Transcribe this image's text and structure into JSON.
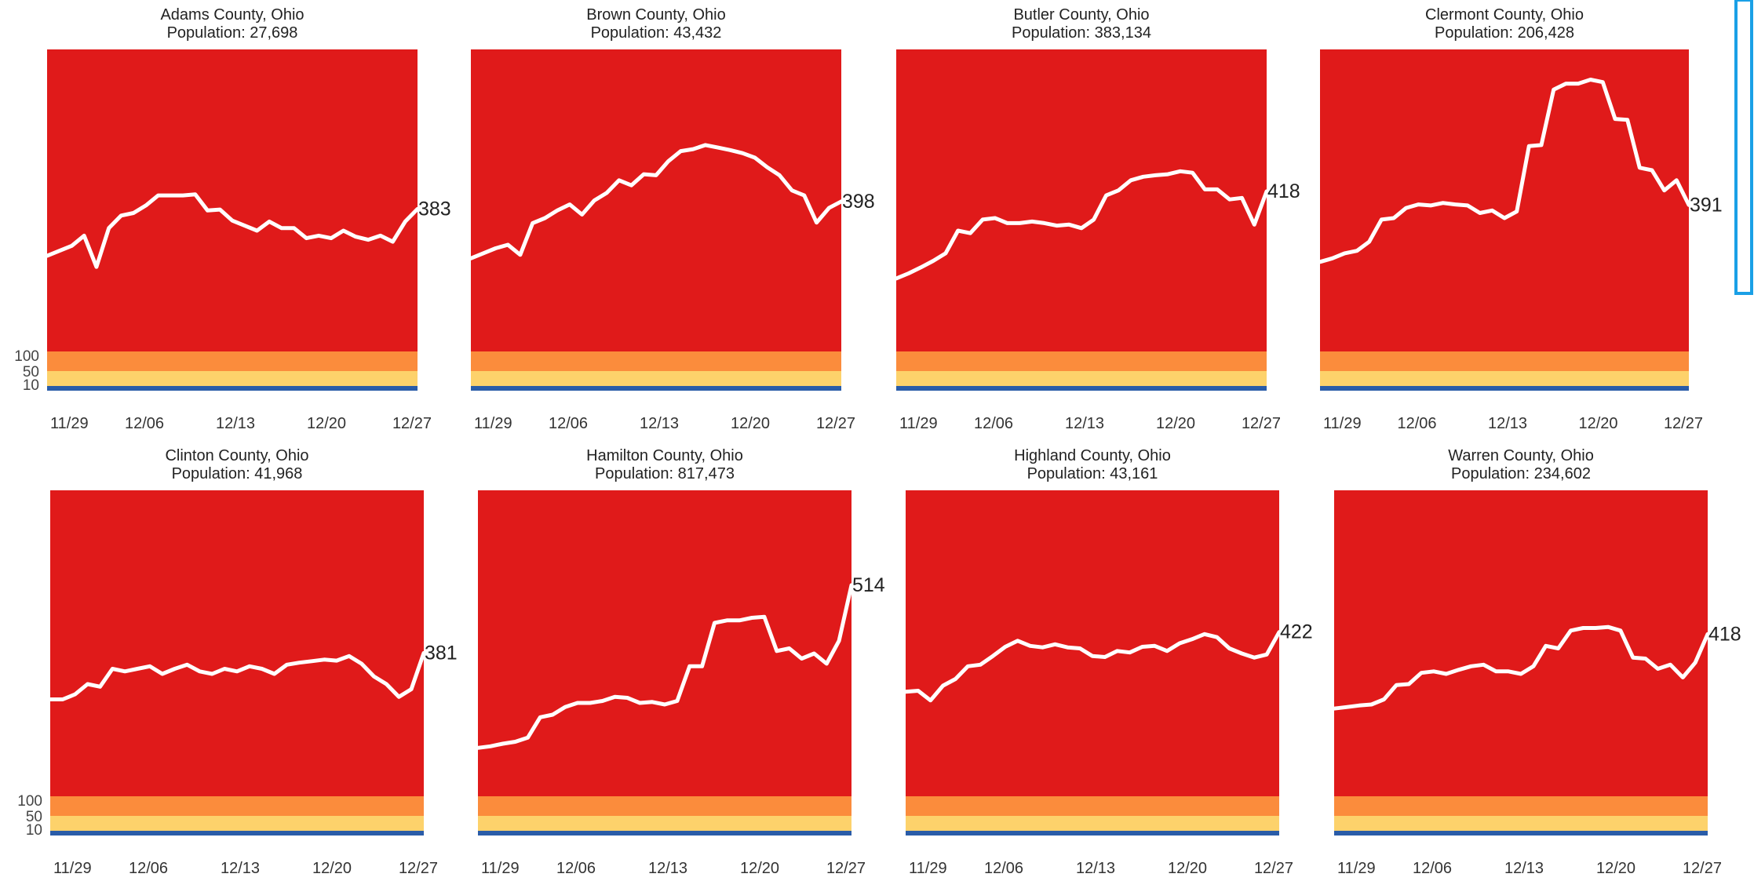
{
  "y_band_labels": [
    "100",
    "50",
    "10"
  ],
  "colors": {
    "red": "#e01a1a",
    "orange": "#fb8c3c",
    "yellow": "#fdd26b",
    "blue": "#2a5ca8",
    "line": "#ffffff",
    "frame_accent": "#1aa0e6"
  },
  "chart_data": [
    {
      "type": "line",
      "title": "Adams County, Ohio",
      "subtitle": "Population:  27,698",
      "x_tick_labels": [
        "11/29",
        "12/06",
        "12/13",
        "12/20",
        "12/27"
      ],
      "y_band_labels": [
        "100",
        "50",
        "10"
      ],
      "end_label": "383",
      "series": [
        {
          "values": [
            290,
            300,
            310,
            330,
            268,
            345,
            370,
            375,
            390,
            410,
            410,
            410,
            412,
            380,
            382,
            360,
            350,
            340,
            358,
            345,
            345,
            325,
            330,
            325,
            340,
            328,
            322,
            330,
            318,
            358,
            383
          ]
        }
      ]
    },
    {
      "type": "line",
      "title": "Brown County, Ohio",
      "subtitle": "Population:  43,432",
      "x_tick_labels": [
        "11/29",
        "12/06",
        "12/13",
        "12/20",
        "12/27"
      ],
      "y_band_labels": [
        "100",
        "50",
        "10"
      ],
      "end_label": "398",
      "series": [
        {
          "values": [
            285,
            295,
            305,
            312,
            292,
            355,
            365,
            380,
            392,
            372,
            400,
            415,
            440,
            430,
            452,
            450,
            478,
            498,
            502,
            510,
            505,
            500,
            494,
            485,
            466,
            450,
            420,
            410,
            356,
            385,
            398
          ]
        }
      ]
    },
    {
      "type": "line",
      "title": "Butler County, Ohio",
      "subtitle": "Population:  383,134",
      "x_tick_labels": [
        "11/29",
        "12/06",
        "12/13",
        "12/20",
        "12/27"
      ],
      "y_band_labels": [
        "100",
        "50",
        "10"
      ],
      "end_label": "418",
      "series": [
        {
          "values": [
            245,
            255,
            267,
            280,
            295,
            340,
            335,
            362,
            365,
            355,
            355,
            358,
            355,
            350,
            352,
            345,
            362,
            410,
            420,
            440,
            447,
            450,
            452,
            458,
            455,
            422,
            422,
            402,
            405,
            352,
            418
          ]
        }
      ]
    },
    {
      "type": "line",
      "title": "Clermont County, Ohio",
      "subtitle": "Population:  206,428",
      "x_tick_labels": [
        "11/29",
        "12/06",
        "12/13",
        "12/20",
        "12/27"
      ],
      "y_band_labels": [
        "100",
        "50",
        "10"
      ],
      "end_label": "391",
      "series": [
        {
          "values": [
            278,
            285,
            295,
            300,
            318,
            362,
            365,
            385,
            392,
            390,
            395,
            392,
            390,
            375,
            380,
            365,
            378,
            508,
            510,
            620,
            632,
            632,
            640,
            635,
            562,
            560,
            465,
            460,
            420,
            440,
            391
          ]
        }
      ]
    },
    {
      "type": "line",
      "title": "Clinton County, Ohio",
      "subtitle": "Population:  41,968",
      "x_tick_labels": [
        "11/29",
        "12/06",
        "12/13",
        "12/20",
        "12/27"
      ],
      "y_band_labels": [
        "100",
        "50",
        "10"
      ],
      "end_label": "381",
      "series": [
        {
          "values": [
            290,
            290,
            300,
            320,
            315,
            350,
            345,
            350,
            355,
            340,
            350,
            358,
            345,
            340,
            350,
            345,
            355,
            350,
            340,
            358,
            362,
            365,
            368,
            366,
            375,
            360,
            335,
            320,
            295,
            310,
            381
          ]
        }
      ]
    },
    {
      "type": "line",
      "title": "Hamilton County, Ohio",
      "subtitle": "Population:  817,473",
      "x_tick_labels": [
        "11/29",
        "12/06",
        "12/13",
        "12/20",
        "12/27"
      ],
      "y_band_labels": [
        "100",
        "50",
        "10"
      ],
      "end_label": "514",
      "series": [
        {
          "values": [
            195,
            198,
            203,
            207,
            215,
            255,
            260,
            275,
            283,
            283,
            287,
            295,
            293,
            283,
            285,
            280,
            287,
            355,
            355,
            440,
            445,
            445,
            450,
            452,
            385,
            390,
            370,
            380,
            360,
            405,
            514
          ]
        }
      ]
    },
    {
      "type": "line",
      "title": "Highland County, Ohio",
      "subtitle": "Population:  43,161",
      "x_tick_labels": [
        "11/29",
        "12/06",
        "12/13",
        "12/20",
        "12/27"
      ],
      "y_band_labels": [
        "100",
        "50",
        "10"
      ],
      "end_label": "422",
      "series": [
        {
          "values": [
            305,
            307,
            288,
            317,
            330,
            355,
            358,
            375,
            393,
            405,
            395,
            392,
            398,
            392,
            390,
            375,
            373,
            385,
            382,
            393,
            395,
            385,
            400,
            408,
            418,
            412,
            390,
            380,
            372,
            378,
            422
          ]
        }
      ]
    },
    {
      "type": "line",
      "title": "Warren County, Ohio",
      "subtitle": "Population:  234,602",
      "x_tick_labels": [
        "11/29",
        "12/06",
        "12/13",
        "12/20",
        "12/27"
      ],
      "y_band_labels": [
        "100",
        "50",
        "10"
      ],
      "end_label": "418",
      "series": [
        {
          "values": [
            272,
            275,
            278,
            280,
            290,
            318,
            320,
            342,
            345,
            340,
            348,
            355,
            358,
            345,
            345,
            340,
            355,
            395,
            390,
            425,
            430,
            430,
            432,
            425,
            372,
            370,
            350,
            358,
            333,
            362,
            418
          ]
        }
      ]
    }
  ]
}
